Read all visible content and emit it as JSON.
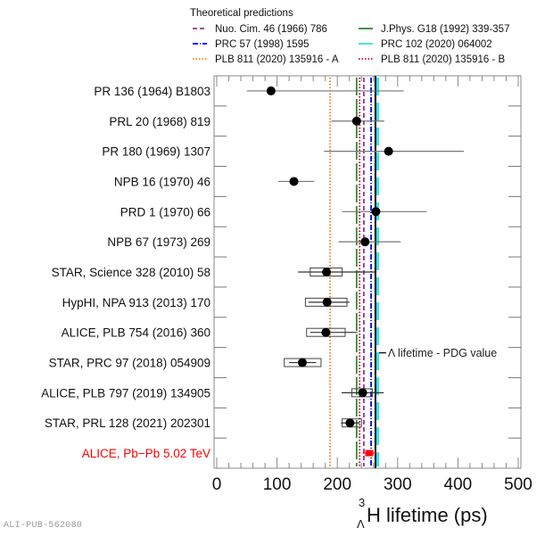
{
  "chart_data": {
    "type": "scatter",
    "title": "",
    "xlabel": "H lifetime (ps)",
    "xlabel_prefix_superscript": "3",
    "xlabel_prefix_subscript": "Λ",
    "ylabel": "",
    "xlim": [
      0,
      510
    ],
    "xticks": [
      0,
      100,
      200,
      300,
      400,
      500
    ],
    "xtick_labels": [
      "0",
      "100",
      "200",
      "300",
      "400",
      "500"
    ],
    "grid": false,
    "legend": {
      "title": "Theoretical predictions",
      "placement": "top",
      "entries": [
        {
          "label": "Nuo. Cim. 46 (1966) 786",
          "color": "#993399",
          "style": "dashed",
          "value": 244
        },
        {
          "label": "J.Phys. G18 (1992) 339-357",
          "color": "#2e8b2e",
          "style": "solid",
          "value": 232
        },
        {
          "label": "PRC 57 (1998) 1595",
          "color": "#0000ee",
          "style": "dashdot",
          "value": 256
        },
        {
          "label": "PRC 102 (2020) 064002",
          "color": "#33e6e6",
          "style": "solid",
          "value": 267
        },
        {
          "label": "PLB 811 (2020) 135916 - A",
          "color": "#ff7f0e",
          "style": "dotted",
          "value": 188
        },
        {
          "label": "PLB 811 (2020) 135916 - B",
          "color": "#cc0033",
          "style": "dotted",
          "value": 237
        }
      ]
    },
    "reference_line": {
      "label": "Λ lifetime - PDG value",
      "value": 263.2,
      "color": "#000000"
    },
    "series": [
      {
        "label": "PR 136 (1964) B1803",
        "value": 90,
        "stat": [
          50,
          310
        ],
        "syst": null,
        "color": "#000000"
      },
      {
        "label": "PRL 20 (1968) 819",
        "value": 232,
        "stat": [
          190,
          278
        ],
        "syst": null,
        "color": "#000000"
      },
      {
        "label": "PR 180 (1969) 1307",
        "value": 285,
        "stat": [
          178,
          410
        ],
        "syst": null,
        "color": "#000000"
      },
      {
        "label": "NPB 16 (1970) 46",
        "value": 128,
        "stat": [
          102,
          162
        ],
        "syst": null,
        "color": "#000000"
      },
      {
        "label": "PRD 1 (1970) 66",
        "value": 264,
        "stat": [
          208,
          348
        ],
        "syst": null,
        "color": "#000000"
      },
      {
        "label": "NPB 67 (1973) 269",
        "value": 246,
        "stat": [
          202,
          305
        ],
        "syst": null,
        "color": "#000000"
      },
      {
        "label": "STAR, Science 328 (2010) 58",
        "value": 182,
        "stat": [
          135,
          265
        ],
        "syst": [
          155,
          208
        ],
        "color": "#000000"
      },
      {
        "label": "HypHI, NPA 913 (2013) 170",
        "value": 183,
        "stat": [
          152,
          220
        ],
        "syst": [
          147,
          216
        ],
        "color": "#000000"
      },
      {
        "label": "ALICE, PLB 754 (2016) 360",
        "value": 181,
        "stat": [
          155,
          233
        ],
        "syst": [
          149,
          213
        ],
        "color": "#000000"
      },
      {
        "label": "STAR, PRC 97 (2018) 054909",
        "value": 142,
        "stat": [
          120,
          165
        ],
        "syst": [
          112,
          173
        ],
        "color": "#000000"
      },
      {
        "label": "ALICE, PLB 797 (2019) 134905",
        "value": 242,
        "stat": [
          207,
          277
        ],
        "syst": [
          224,
          258
        ],
        "color": "#000000"
      },
      {
        "label": "STAR, PRL 128 (2021) 202301",
        "value": 221,
        "stat": [
          206,
          237
        ],
        "syst": [
          208,
          240
        ],
        "color": "#000000"
      },
      {
        "label": "ALICE, Pb−Pb 5.02 TeV",
        "value": 253,
        "stat": [
          242,
          264
        ],
        "syst": [
          247,
          259
        ],
        "color": "#ff0000"
      }
    ]
  },
  "watermark": "ALI-PUB-562080"
}
